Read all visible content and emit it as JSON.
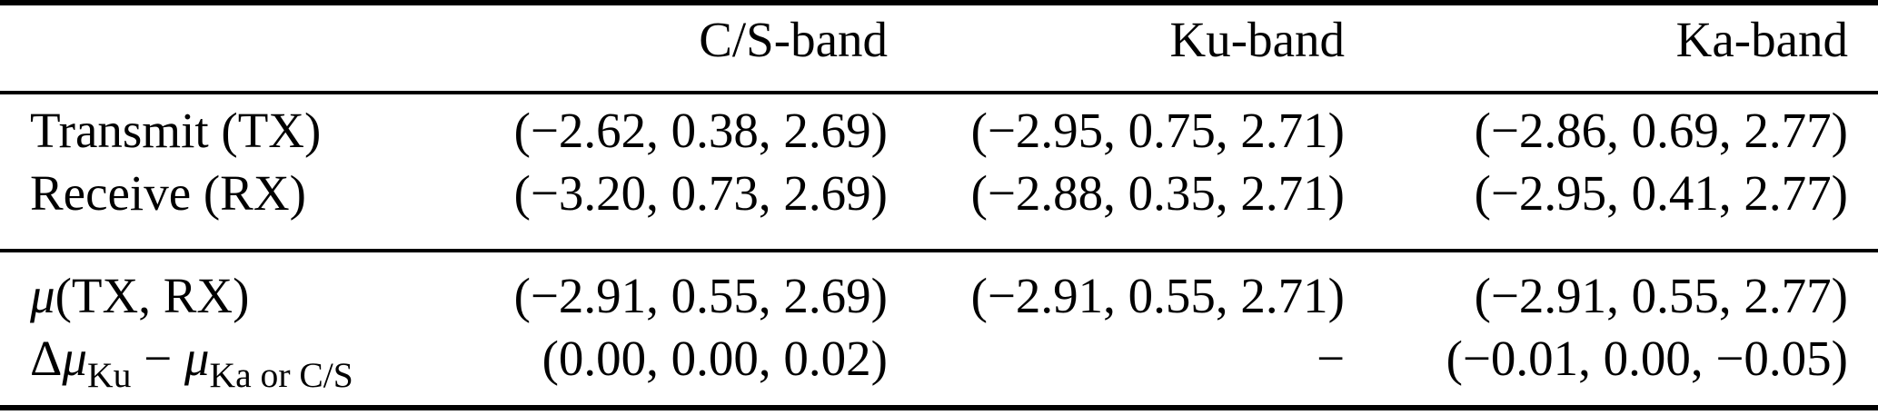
{
  "figure": {
    "background": "#ffffff",
    "text_color": "#000000",
    "rule_color": "#000000"
  },
  "table": {
    "column_headers": [
      "",
      "C/S-band",
      "Ku-band",
      "Ka-band"
    ],
    "sections": [
      {
        "name": "antenna-phase-centers",
        "rows": [
          {
            "label_parts": [
              {
                "text": "Transmit (TX)"
              }
            ],
            "values": [
              "(−2.62, 0.38, 2.69)",
              "(−2.95, 0.75, 2.71)",
              "(−2.86, 0.69, 2.77)"
            ]
          },
          {
            "label_parts": [
              {
                "text": "Receive (RX)"
              }
            ],
            "values": [
              "(−3.20, 0.73, 2.69)",
              "(−2.88, 0.35, 2.71)",
              "(−2.95, 0.41, 2.77)"
            ]
          }
        ]
      },
      {
        "name": "mean-and-difference",
        "rows": [
          {
            "label_parts": [
              {
                "text": "μ",
                "italic": true
              },
              {
                "text": "(TX, RX)"
              }
            ],
            "values": [
              "(−2.91, 0.55, 2.69)",
              "(−2.91, 0.55, 2.71)",
              "(−2.91, 0.55, 2.77)"
            ]
          },
          {
            "label_parts": [
              {
                "text": "Δ"
              },
              {
                "text": "μ",
                "italic": true
              },
              {
                "text": "Ku",
                "sub": true
              },
              {
                "text": " − "
              },
              {
                "text": "μ",
                "italic": true
              },
              {
                "text": "Ka or C/S",
                "sub": true
              }
            ],
            "values": [
              "(0.00, 0.00, 0.02)",
              "−",
              "(−0.01, 0.00, −0.05)"
            ]
          }
        ]
      }
    ]
  }
}
